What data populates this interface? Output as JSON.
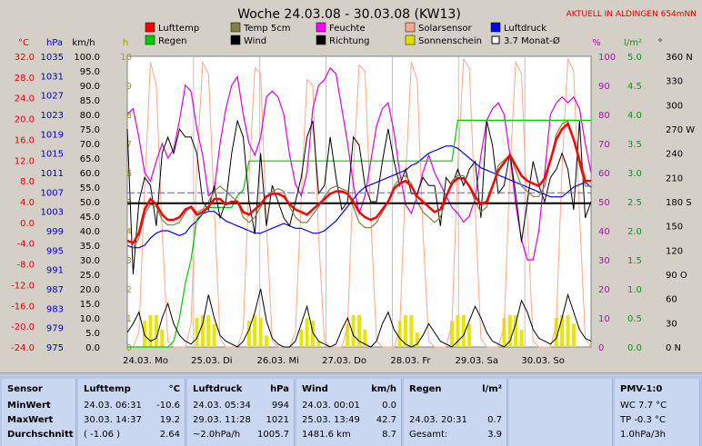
{
  "title": "Woche 24.03.08 - 30.03.08 (KW13)",
  "live_label": "AKTUELL IN ALDINGEN 654mNN",
  "axis_units": {
    "celsius": "°C",
    "hpa": "hPa",
    "kmh": "km/h",
    "hours": "h",
    "percent": "%",
    "rain": "l/m²",
    "degree": "°"
  },
  "legend": [
    {
      "label": "Lufttemp",
      "color": "#ff0000"
    },
    {
      "label": "Temp 5cm",
      "color": "#808040"
    },
    {
      "label": "Feuchte",
      "color": "#ff00ff"
    },
    {
      "label": "Solarsensor",
      "color": "#ffa88a"
    },
    {
      "label": "Luftdruck",
      "color": "#0000ff"
    },
    {
      "label": "Regen",
      "color": "#00cc00"
    },
    {
      "label": "Wind",
      "color": "#000000"
    },
    {
      "label": "Richtung",
      "color": "#000000"
    },
    {
      "label": "Sonnenschein",
      "color": "#e0e000"
    },
    {
      "label": "3.7 Monat-Ø",
      "color": "#000000"
    }
  ],
  "chart_data": {
    "type": "line",
    "x_ticks": [
      "24.03. Mo",
      "25.03. Di",
      "26.03. Mi",
      "27.03. Do",
      "28.03. Fr",
      "29.03. Sa",
      "30.03. So"
    ],
    "axes": {
      "celsius": {
        "ticks": [
          "32.0",
          "28.0",
          "24.0",
          "20.0",
          "16.0",
          "12.0",
          "8.0",
          "4.0",
          "0.0",
          "-4.0",
          "-8.0",
          "-12.0",
          "-16.0",
          "-20.0",
          "-24.0"
        ],
        "color": "#e00000"
      },
      "hpa": {
        "ticks": [
          "1035",
          "1031",
          "1027",
          "1023",
          "1019",
          "1015",
          "1011",
          "1007",
          "1003",
          "999",
          "995",
          "991",
          "987",
          "983",
          "979",
          "975"
        ],
        "color": "#0000c0"
      },
      "kmh": {
        "ticks": [
          "100.0",
          "95.0",
          "90.0",
          "85.0",
          "80.0",
          "75.0",
          "70.0",
          "65.0",
          "60.0",
          "55.0",
          "50.0",
          "45.0",
          "40.0",
          "35.0",
          "30.0",
          "25.0",
          "20.0",
          "15.0",
          "10.0",
          "5.0",
          "0.0"
        ],
        "color": "#000000"
      },
      "hours": {
        "ticks": [
          "10",
          "9",
          "8",
          "7",
          "6",
          "5",
          "4",
          "3",
          "2",
          "1",
          "0"
        ],
        "color": "#a0a000"
      },
      "percent": {
        "ticks": [
          "100",
          "90",
          "80",
          "70",
          "60",
          "50",
          "40",
          "30",
          "20",
          "10",
          "0"
        ],
        "color": "#c000c0"
      },
      "rain": {
        "ticks": [
          "5.0",
          "4.5",
          "4.0",
          "3.5",
          "3.0",
          "2.5",
          "2.0",
          "1.5",
          "1.0",
          "0.5",
          "0.0"
        ],
        "color": "#00a000"
      },
      "direction": {
        "ticks": [
          "360 N",
          "330",
          "300",
          "270 W",
          "240",
          "210",
          "180 S",
          "150",
          "120",
          "90 O",
          "60",
          "30",
          "0 N"
        ],
        "color": "#000000"
      }
    },
    "series": [
      {
        "name": "Lufttemp",
        "unit": "°C",
        "color": "#ff0000",
        "values": [
          -3.5,
          -4,
          -2,
          2.5,
          4.5,
          3.5,
          1.5,
          0.5,
          0.5,
          1,
          2.5,
          3,
          1.5,
          2,
          3,
          4.5,
          4.5,
          3.5,
          4,
          4,
          2,
          1.5,
          2.5,
          3.5,
          5,
          5.5,
          5.5,
          5,
          3.5,
          2.5,
          2,
          1.5,
          2.5,
          3.5,
          4.5,
          5.5,
          6,
          6,
          5.5,
          4,
          2,
          1,
          0.5,
          1,
          2.5,
          4,
          6.5,
          7.5,
          8,
          7,
          5,
          4,
          3,
          2,
          2.5,
          5,
          7.5,
          8.5,
          8.5,
          7,
          5,
          3.5,
          4,
          7,
          10,
          11.5,
          13,
          11,
          9,
          8,
          7.5,
          7,
          8.5,
          12,
          16,
          18,
          19,
          16,
          12,
          8,
          8
        ]
      },
      {
        "name": "Temp 5cm",
        "unit": "°C",
        "color": "#808040",
        "values": [
          -4.5,
          -5,
          -3,
          1.5,
          3.5,
          3,
          0.5,
          -0.5,
          -0.5,
          0,
          2,
          3,
          2,
          2.5,
          4,
          6,
          7,
          6,
          5,
          4,
          1,
          0,
          1,
          3,
          5,
          6,
          6.5,
          6,
          3,
          1,
          0,
          0,
          1.5,
          3,
          5,
          6.5,
          7,
          6.5,
          6,
          3,
          0,
          -1,
          -1,
          0,
          2,
          4,
          7,
          8.5,
          9,
          7.5,
          4,
          2,
          1,
          0,
          1,
          4.5,
          8,
          9,
          9,
          7,
          4,
          2,
          3,
          7,
          11,
          12,
          13,
          10,
          7,
          6,
          5,
          5,
          7,
          12,
          17,
          19,
          19.5,
          16,
          11,
          7,
          7
        ]
      },
      {
        "name": "Luftdruck",
        "unit": "hPa",
        "color": "#0000ff",
        "values": [
          996,
          995.5,
          995.5,
          996,
          997.5,
          998.5,
          999,
          999,
          998.5,
          998,
          998.5,
          1000,
          1001,
          1002.5,
          1003,
          1003,
          1002,
          1001,
          1000.5,
          1000,
          999.5,
          999,
          998.5,
          998.5,
          999,
          999.5,
          1000,
          1000.5,
          1000,
          999.5,
          999.5,
          999,
          998.5,
          998.5,
          999,
          1000,
          1001,
          1002.5,
          1004,
          1005.5,
          1007,
          1008,
          1008.5,
          1009,
          1009.5,
          1010,
          1010.5,
          1011,
          1011.5,
          1012.5,
          1013,
          1014,
          1015,
          1015.5,
          1016,
          1016.5,
          1016.5,
          1016,
          1015,
          1014,
          1013,
          1012,
          1011.5,
          1011,
          1010.5,
          1010,
          1009.5,
          1009,
          1008.5,
          1008,
          1007.5,
          1007,
          1006.5,
          1006,
          1006,
          1006,
          1007,
          1008,
          1008.5,
          1009,
          1008
        ]
      },
      {
        "name": "Feuchte",
        "unit": "%",
        "color": "#e000e0",
        "values": [
          80,
          82,
          72,
          60,
          57,
          64,
          70,
          65,
          68,
          78,
          90,
          88,
          75,
          66,
          52,
          54,
          70,
          82,
          90,
          93,
          80,
          70,
          66,
          72,
          86,
          88,
          86,
          80,
          66,
          56,
          52,
          60,
          82,
          90,
          92,
          96,
          94,
          82,
          70,
          56,
          46,
          52,
          64,
          76,
          82,
          84,
          74,
          60,
          49,
          46,
          52,
          60,
          66,
          60,
          56,
          52,
          48,
          46,
          43,
          45,
          51,
          66,
          78,
          82,
          84,
          80,
          66,
          49,
          37,
          30,
          30,
          40,
          60,
          80,
          84,
          86,
          84,
          86,
          82,
          70,
          60
        ]
      },
      {
        "name": "Solarsensor",
        "unit": "%",
        "color": "#ffa888",
        "values": [
          0,
          0,
          5,
          55,
          98,
          90,
          40,
          2,
          0,
          0,
          0,
          8,
          62,
          98,
          94,
          48,
          3,
          0,
          0,
          0,
          6,
          58,
          96,
          94,
          42,
          2,
          0,
          0,
          0,
          5,
          52,
          92,
          90,
          38,
          2,
          0,
          0,
          0,
          7,
          60,
          97,
          95,
          44,
          2,
          0,
          0,
          0,
          6,
          58,
          98,
          92,
          40,
          2,
          0,
          0,
          0,
          8,
          62,
          99,
          96,
          48,
          3,
          0,
          0,
          0,
          7,
          60,
          98,
          94,
          44,
          2,
          0,
          0,
          0,
          8,
          62,
          99,
          95,
          46,
          3,
          0
        ]
      },
      {
        "name": "Regen",
        "unit": "l/m²",
        "color": "#00cc00",
        "values": [
          0,
          0,
          0,
          0,
          0,
          0,
          0,
          0,
          0.1,
          0.5,
          1.1,
          1.5,
          2.2,
          2.3,
          2.4,
          2.4,
          2.4,
          2.4,
          2.4,
          2.6,
          2.7,
          3.2,
          3.2,
          3.2,
          3.2,
          3.2,
          3.2,
          3.2,
          3.2,
          3.2,
          3.2,
          3.2,
          3.2,
          3.2,
          3.2,
          3.2,
          3.2,
          3.2,
          3.2,
          3.2,
          3.2,
          3.2,
          3.2,
          3.2,
          3.2,
          3.2,
          3.2,
          3.2,
          3.2,
          3.2,
          3.2,
          3.2,
          3.2,
          3.2,
          3.2,
          3.2,
          3.2,
          3.9,
          3.9,
          3.9,
          3.9,
          3.9,
          3.9,
          3.9,
          3.9,
          3.9,
          3.9,
          3.9,
          3.9,
          3.9,
          3.9,
          3.9,
          3.9,
          3.9,
          3.9,
          3.9,
          3.9,
          3.9,
          3.9,
          3.9,
          3.9
        ]
      },
      {
        "name": "Wind",
        "unit": "km/h",
        "color": "#000000",
        "values": [
          5,
          8,
          12,
          4,
          2,
          3,
          10,
          15,
          8,
          4,
          2,
          1,
          3,
          8,
          18,
          10,
          4,
          2,
          1,
          0,
          2,
          6,
          12,
          20,
          9,
          3,
          1,
          0,
          0,
          2,
          8,
          14,
          5,
          2,
          1,
          0,
          1,
          6,
          10,
          4,
          2,
          1,
          0,
          2,
          8,
          12,
          6,
          3,
          1,
          0,
          1,
          4,
          8,
          5,
          2,
          1,
          0,
          2,
          4,
          9,
          14,
          10,
          5,
          2,
          1,
          0,
          2,
          8,
          16,
          12,
          6,
          3,
          2,
          1,
          3,
          10,
          18,
          12,
          6,
          3,
          2
        ]
      },
      {
        "name": "Richtung",
        "unit": "°",
        "color": "#000000",
        "values": [
          270,
          90,
          180,
          210,
          200,
          150,
          240,
          260,
          240,
          270,
          260,
          260,
          240,
          180,
          170,
          200,
          160,
          180,
          240,
          280,
          260,
          180,
          140,
          240,
          150,
          200,
          180,
          160,
          150,
          180,
          210,
          260,
          280,
          190,
          200,
          260,
          210,
          170,
          180,
          260,
          250,
          200,
          180,
          180,
          230,
          270,
          230,
          200,
          220,
          190,
          190,
          210,
          200,
          200,
          150,
          210,
          200,
          220,
          200,
          220,
          230,
          160,
          280,
          250,
          190,
          200,
          240,
          190,
          130,
          180,
          230,
          200,
          180,
          210,
          220,
          240,
          220,
          170,
          280,
          160,
          180
        ]
      },
      {
        "name": "Sonnenschein",
        "unit": "h",
        "color": "#e6e600",
        "values": [
          0,
          0,
          0,
          0.9,
          1.1,
          1.1,
          0.6,
          0,
          0,
          0,
          0,
          0,
          1,
          1.1,
          1.1,
          0.8,
          0,
          0,
          0,
          0,
          0,
          0.9,
          1.1,
          1,
          0.4,
          0,
          0,
          0,
          0,
          0,
          0.6,
          1,
          0.9,
          0.2,
          0,
          0,
          0,
          0,
          0.8,
          1.1,
          1.1,
          0.6,
          0,
          0,
          0,
          0,
          0,
          0.9,
          1.1,
          1.1,
          0.5,
          0,
          0,
          0,
          0,
          0,
          0.9,
          1.1,
          1.1,
          0.8,
          0,
          0,
          0,
          0,
          0,
          1,
          1.1,
          1.1,
          0.6,
          0,
          0,
          0,
          0,
          0,
          1,
          1.1,
          1.1,
          0.8,
          0,
          0,
          0
        ]
      }
    ],
    "reference_lines": [
      {
        "name": "3.7 Monat-Ø",
        "unit": "°C",
        "value": 3.7,
        "color": "#000000"
      },
      {
        "name": "dashed",
        "unit": "°C",
        "value": 5.7,
        "color": "#6060a0"
      }
    ]
  },
  "table": {
    "sensor": {
      "header": "Sensor",
      "rows": [
        "MinWert",
        "MaxWert",
        "Durchschnitt"
      ]
    },
    "lufttemp": {
      "header": "Lufttemp",
      "unit": "°C",
      "rows": [
        [
          "24.03.",
          "06:31",
          "-10.6"
        ],
        [
          "30.03.",
          "14:37",
          "19.2"
        ],
        [
          "( -1.06 )",
          "",
          "2.64"
        ]
      ]
    },
    "luftdruck": {
      "header": "Luftdruck",
      "unit": "hPa",
      "rows": [
        [
          "24.03.",
          "05:34",
          "994"
        ],
        [
          "29.03.",
          "11:28",
          "1021"
        ],
        [
          "~2.0hPa/h",
          "",
          "1005.7"
        ]
      ]
    },
    "wind": {
      "header": "Wind",
      "unit": "km/h",
      "rows": [
        [
          "24.03.",
          "00:01",
          "0.0"
        ],
        [
          "25.03.",
          "13:49",
          "42.7"
        ],
        [
          "1481.6 km",
          "",
          "8.7"
        ]
      ]
    },
    "regen": {
      "header": "Regen",
      "unit": "l/m²",
      "rows": [
        [
          "",
          "",
          ""
        ],
        [
          "24.03.",
          "20:31",
          "0.7"
        ],
        [
          "Gesamt:",
          "",
          "3.9"
        ]
      ]
    },
    "pmv": {
      "header": "PMV-1:0",
      "rows": [
        "WC 7.7 °C",
        "TP -0.3 °C",
        "1.0hPa/3h"
      ]
    }
  }
}
